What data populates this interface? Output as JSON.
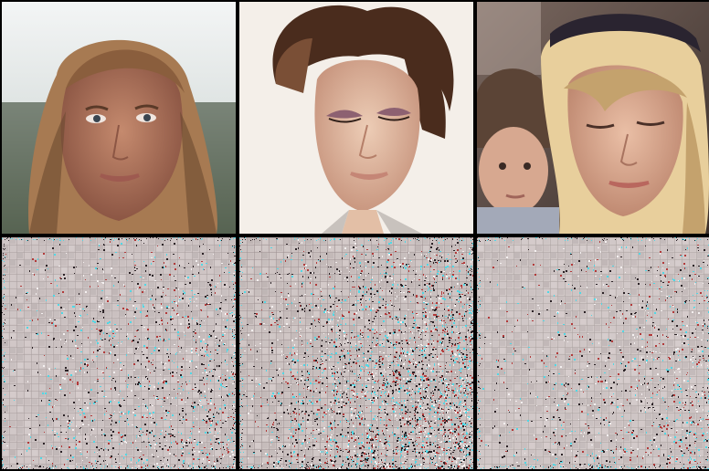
{
  "panels": {
    "top": [
      {
        "subject": "woman-long-brown-hair-outdoor",
        "palette": {
          "sky": "#e7ecee",
          "foliage": "#4d5a48",
          "hair": "#a77a52",
          "hair_dark": "#6b4a31",
          "skin": "#b57c62",
          "skin_shade": "#8c5644",
          "lips": "#9e5a50",
          "eyes": "#3a4550"
        }
      },
      {
        "subject": "woman-updo-eyes-closed",
        "palette": {
          "bg": "#f4efe9",
          "hair": "#4a2c1d",
          "hair_light": "#7a4f36",
          "skin": "#e3bfa6",
          "skin_shade": "#c99780",
          "eyeshadow": "#8d6171",
          "lips": "#c58676",
          "collar": "#c8c2bd"
        }
      },
      {
        "subject": "blonde-woman-with-child",
        "palette": {
          "bg_dark": "#5a4a44",
          "headband": "#2a2430",
          "hair": "#e8cf9c",
          "hair_shade": "#c4a26d",
          "skin": "#e0b197",
          "skin_shade": "#c08a72",
          "child_hair": "#5b4436",
          "child_skin": "#d7a890",
          "child_shirt": "#a3a9b8"
        }
      }
    ],
    "bottom": [
      {
        "subject": "reconstruction-noise-1",
        "palette": {
          "base": "#cfc5c5",
          "grid": "#a89e9e",
          "speck_cyan": "#4fd8e6",
          "speck_dark": "#2b2226",
          "speck_red": "#b23a3a"
        },
        "noise_level": 0.25
      },
      {
        "subject": "reconstruction-noise-2",
        "palette": {
          "base": "#cdc3c2",
          "grid": "#9c9090",
          "speck_cyan": "#4fd8e6",
          "speck_dark": "#2b2226",
          "speck_red": "#b23a3a"
        },
        "noise_level": 0.55
      },
      {
        "subject": "reconstruction-noise-3",
        "palette": {
          "base": "#d1c8c7",
          "grid": "#aaa0a0",
          "speck_cyan": "#4fd8e6",
          "speck_dark": "#2b2226",
          "speck_red": "#b23a3a"
        },
        "noise_level": 0.2
      }
    ]
  }
}
